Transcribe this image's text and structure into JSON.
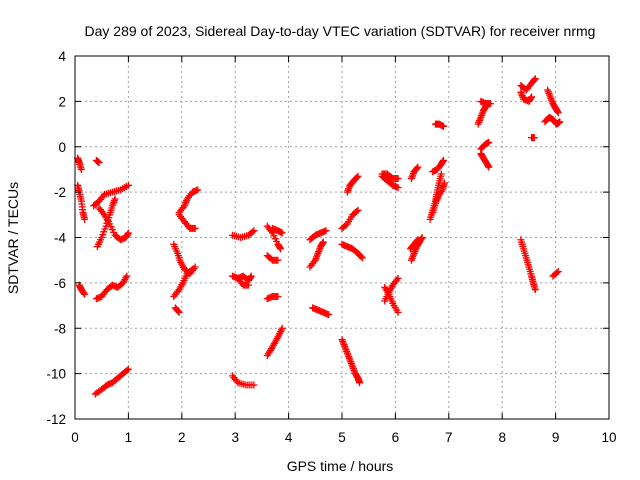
{
  "chart_data": {
    "type": "scatter",
    "title": "Day 289 of 2023, Sidereal Day-to-day VTEC variation (SDTVAR) for receiver nrmg",
    "xlabel": "GPS time / hours",
    "ylabel": "SDTVAR / TECUs",
    "xlim": [
      0,
      10
    ],
    "ylim": [
      -12,
      4
    ],
    "xticks": [
      "0",
      "1",
      "2",
      "3",
      "4",
      "5",
      "6",
      "7",
      "8",
      "9",
      "10"
    ],
    "yticks": [
      "-12",
      "-10",
      "-8",
      "-6",
      "-4",
      "-2",
      "0",
      "2",
      "4"
    ],
    "grid": true,
    "marker": "plus",
    "marker_color": "#ff0000",
    "segments": [
      [
        [
          0.05,
          -0.5
        ],
        [
          0.08,
          -0.7
        ],
        [
          0.12,
          -1.0
        ]
      ],
      [
        [
          0.05,
          -1.7
        ],
        [
          0.08,
          -2.0
        ],
        [
          0.12,
          -2.4
        ],
        [
          0.15,
          -2.9
        ],
        [
          0.18,
          -3.2
        ]
      ],
      [
        [
          0.08,
          -6.1
        ],
        [
          0.12,
          -6.3
        ],
        [
          0.18,
          -6.5
        ]
      ],
      [
        [
          0.4,
          -0.6
        ],
        [
          0.45,
          -0.7
        ]
      ],
      [
        [
          0.35,
          -2.6
        ],
        [
          0.45,
          -2.4
        ],
        [
          0.55,
          -2.1
        ],
        [
          0.7,
          -2.0
        ],
        [
          0.85,
          -1.9
        ],
        [
          1.0,
          -1.7
        ]
      ],
      [
        [
          0.45,
          -2.7
        ],
        [
          0.55,
          -3.0
        ],
        [
          0.65,
          -3.4
        ],
        [
          0.75,
          -3.9
        ],
        [
          0.85,
          -4.1
        ],
        [
          0.95,
          -4.0
        ],
        [
          1.0,
          -3.8
        ]
      ],
      [
        [
          0.42,
          -4.4
        ],
        [
          0.5,
          -4.0
        ],
        [
          0.58,
          -3.5
        ],
        [
          0.65,
          -3.0
        ],
        [
          0.7,
          -2.6
        ],
        [
          0.75,
          -2.3
        ]
      ],
      [
        [
          0.4,
          -6.7
        ],
        [
          0.5,
          -6.6
        ],
        [
          0.6,
          -6.3
        ],
        [
          0.7,
          -6.1
        ],
        [
          0.8,
          -6.2
        ],
        [
          0.9,
          -6.0
        ],
        [
          0.97,
          -5.7
        ]
      ],
      [
        [
          0.38,
          -10.9
        ],
        [
          0.5,
          -10.7
        ],
        [
          0.6,
          -10.5
        ],
        [
          0.7,
          -10.4
        ],
        [
          0.8,
          -10.2
        ],
        [
          0.9,
          -10.0
        ],
        [
          1.0,
          -9.8
        ]
      ],
      [
        [
          1.95,
          -3.0
        ],
        [
          2.05,
          -3.3
        ],
        [
          2.15,
          -3.6
        ],
        [
          2.25,
          -3.6
        ]
      ],
      [
        [
          1.95,
          -2.9
        ],
        [
          2.05,
          -2.6
        ],
        [
          2.1,
          -2.3
        ],
        [
          2.2,
          -2.0
        ],
        [
          2.3,
          -1.9
        ]
      ],
      [
        [
          1.85,
          -4.3
        ],
        [
          1.92,
          -4.7
        ],
        [
          1.98,
          -5.1
        ],
        [
          2.05,
          -5.4
        ],
        [
          2.15,
          -5.6
        ],
        [
          2.25,
          -5.3
        ]
      ],
      [
        [
          1.85,
          -6.6
        ],
        [
          1.95,
          -6.3
        ],
        [
          2.02,
          -6.0
        ],
        [
          2.1,
          -5.6
        ],
        [
          2.2,
          -5.4
        ]
      ],
      [
        [
          1.88,
          -7.1
        ],
        [
          1.95,
          -7.3
        ]
      ],
      [
        [
          2.95,
          -3.9
        ],
        [
          3.1,
          -4.0
        ],
        [
          3.25,
          -3.9
        ],
        [
          3.35,
          -3.7
        ]
      ],
      [
        [
          2.95,
          -5.7
        ],
        [
          3.05,
          -5.8
        ],
        [
          3.15,
          -5.7
        ],
        [
          3.25,
          -5.9
        ],
        [
          3.3,
          -5.7
        ]
      ],
      [
        [
          3.05,
          -5.8
        ],
        [
          3.15,
          -6.1
        ],
        [
          3.25,
          -6.1
        ]
      ],
      [
        [
          2.95,
          -10.1
        ],
        [
          3.05,
          -10.4
        ],
        [
          3.2,
          -10.5
        ],
        [
          3.35,
          -10.5
        ]
      ],
      [
        [
          3.6,
          -3.5
        ],
        [
          3.7,
          -3.8
        ],
        [
          3.8,
          -4.3
        ],
        [
          3.85,
          -4.5
        ]
      ],
      [
        [
          3.7,
          -3.6
        ],
        [
          3.8,
          -3.7
        ],
        [
          3.88,
          -3.8
        ]
      ],
      [
        [
          3.6,
          -4.8
        ],
        [
          3.7,
          -5.0
        ],
        [
          3.8,
          -5.0
        ]
      ],
      [
        [
          3.6,
          -6.7
        ],
        [
          3.7,
          -6.6
        ],
        [
          3.8,
          -6.6
        ]
      ],
      [
        [
          3.6,
          -9.2
        ],
        [
          3.68,
          -8.9
        ],
        [
          3.75,
          -8.6
        ],
        [
          3.82,
          -8.3
        ],
        [
          3.88,
          -8.0
        ]
      ],
      [
        [
          4.4,
          -4.1
        ],
        [
          4.5,
          -3.9
        ],
        [
          4.6,
          -3.8
        ],
        [
          4.7,
          -3.7
        ]
      ],
      [
        [
          4.4,
          -5.3
        ],
        [
          4.5,
          -5.0
        ],
        [
          4.55,
          -4.7
        ],
        [
          4.6,
          -4.4
        ],
        [
          4.65,
          -4.2
        ]
      ],
      [
        [
          4.45,
          -7.1
        ],
        [
          4.55,
          -7.2
        ],
        [
          4.65,
          -7.3
        ],
        [
          4.75,
          -7.4
        ]
      ],
      [
        [
          5.0,
          -3.6
        ],
        [
          5.1,
          -3.4
        ],
        [
          5.2,
          -3.0
        ],
        [
          5.3,
          -2.8
        ]
      ],
      [
        [
          5.1,
          -2.0
        ],
        [
          5.15,
          -1.7
        ],
        [
          5.22,
          -1.5
        ],
        [
          5.3,
          -1.3
        ]
      ],
      [
        [
          5.0,
          -4.3
        ],
        [
          5.1,
          -4.4
        ],
        [
          5.2,
          -4.5
        ],
        [
          5.3,
          -4.7
        ],
        [
          5.38,
          -4.9
        ]
      ],
      [
        [
          5.0,
          -8.5
        ],
        [
          5.05,
          -8.8
        ],
        [
          5.1,
          -9.1
        ],
        [
          5.15,
          -9.4
        ],
        [
          5.2,
          -9.7
        ],
        [
          5.25,
          -10.0
        ],
        [
          5.3,
          -10.2
        ],
        [
          5.33,
          -10.4
        ]
      ],
      [
        [
          5.75,
          -1.3
        ],
        [
          5.85,
          -1.5
        ],
        [
          5.95,
          -1.7
        ],
        [
          6.05,
          -1.8
        ]
      ],
      [
        [
          5.75,
          -1.2
        ],
        [
          5.85,
          -1.2
        ],
        [
          5.95,
          -1.4
        ],
        [
          6.05,
          -1.4
        ]
      ],
      [
        [
          5.8,
          -6.8
        ],
        [
          5.88,
          -6.4
        ],
        [
          5.95,
          -6.1
        ],
        [
          6.05,
          -5.8
        ]
      ],
      [
        [
          5.8,
          -6.2
        ],
        [
          5.88,
          -6.5
        ],
        [
          5.95,
          -6.9
        ],
        [
          6.05,
          -7.3
        ]
      ],
      [
        [
          6.3,
          -1.4
        ],
        [
          6.35,
          -1.1
        ],
        [
          6.42,
          -0.9
        ]
      ],
      [
        [
          6.3,
          -5.0
        ],
        [
          6.35,
          -4.7
        ],
        [
          6.4,
          -4.4
        ],
        [
          6.45,
          -4.2
        ],
        [
          6.5,
          -4.0
        ]
      ],
      [
        [
          6.28,
          -4.5
        ],
        [
          6.35,
          -4.3
        ],
        [
          6.42,
          -4.1
        ]
      ],
      [
        [
          6.7,
          -1.1
        ],
        [
          6.78,
          -1.0
        ],
        [
          6.85,
          -0.8
        ],
        [
          6.9,
          -0.6
        ]
      ],
      [
        [
          6.65,
          -3.2
        ],
        [
          6.7,
          -2.8
        ],
        [
          6.75,
          -2.4
        ],
        [
          6.78,
          -2.0
        ],
        [
          6.82,
          -1.6
        ],
        [
          6.86,
          -1.2
        ]
      ],
      [
        [
          6.7,
          -2.9
        ],
        [
          6.75,
          -2.5
        ],
        [
          6.8,
          -2.2
        ],
        [
          6.88,
          -1.9
        ],
        [
          6.92,
          -1.6
        ]
      ],
      [
        [
          6.75,
          1.0
        ],
        [
          6.82,
          1.0
        ],
        [
          6.9,
          0.9
        ]
      ],
      [
        [
          7.55,
          1.0
        ],
        [
          7.6,
          1.3
        ],
        [
          7.65,
          1.6
        ],
        [
          7.7,
          1.8
        ]
      ],
      [
        [
          7.6,
          2.0
        ],
        [
          7.7,
          1.9
        ],
        [
          7.78,
          1.9
        ]
      ],
      [
        [
          7.6,
          -0.3
        ],
        [
          7.65,
          -0.5
        ],
        [
          7.7,
          -0.7
        ],
        [
          7.75,
          -0.9
        ]
      ],
      [
        [
          7.6,
          -0.1
        ],
        [
          7.68,
          0.1
        ],
        [
          7.75,
          0.2
        ]
      ],
      [
        [
          8.35,
          2.7
        ],
        [
          8.45,
          2.5
        ],
        [
          8.55,
          2.8
        ],
        [
          8.62,
          3.0
        ]
      ],
      [
        [
          8.35,
          2.4
        ],
        [
          8.4,
          2.1
        ],
        [
          8.5,
          2.0
        ],
        [
          8.55,
          2.2
        ]
      ],
      [
        [
          8.55,
          0.4
        ],
        [
          8.6,
          0.4
        ]
      ],
      [
        [
          8.35,
          -4.1
        ],
        [
          8.4,
          -4.5
        ],
        [
          8.45,
          -4.9
        ],
        [
          8.5,
          -5.3
        ],
        [
          8.55,
          -5.7
        ],
        [
          8.58,
          -6.0
        ],
        [
          8.62,
          -6.3
        ]
      ],
      [
        [
          8.85,
          2.5
        ],
        [
          8.9,
          2.2
        ],
        [
          8.95,
          1.9
        ],
        [
          9.0,
          1.7
        ],
        [
          9.05,
          1.5
        ]
      ],
      [
        [
          8.8,
          1.1
        ],
        [
          8.88,
          1.3
        ],
        [
          8.95,
          1.2
        ],
        [
          9.02,
          1.0
        ],
        [
          9.08,
          1.1
        ]
      ],
      [
        [
          8.95,
          -5.7
        ],
        [
          9.05,
          -5.5
        ]
      ]
    ]
  }
}
